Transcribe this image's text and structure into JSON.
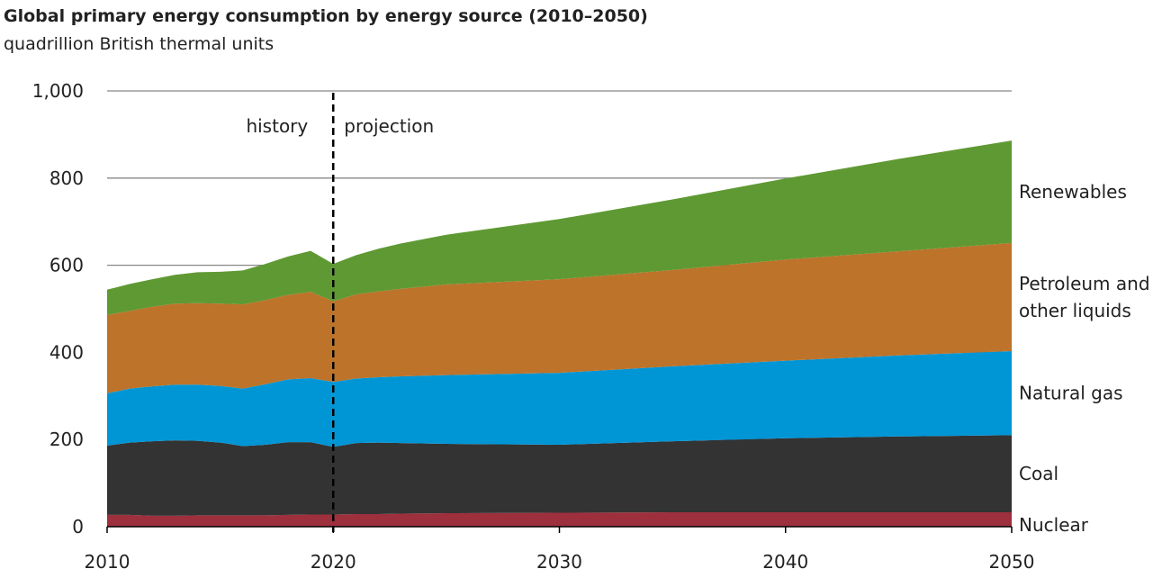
{
  "chart_data": {
    "type": "area",
    "stacked": true,
    "title": "Global primary energy consumption by energy source (2010–2050)",
    "subtitle": "quadrillion British thermal units",
    "xlabel": "",
    "ylabel": "",
    "xlim": [
      2010,
      2050
    ],
    "ylim": [
      0,
      1000
    ],
    "x_ticks": [
      "2010",
      "2020",
      "2030",
      "2040",
      "2050"
    ],
    "y_ticks": [
      "0",
      "200",
      "400",
      "600",
      "800",
      "1,000"
    ],
    "grid": "horizontal",
    "legend": "direct labels at right end",
    "annotations": {
      "divider_year": 2020,
      "history": "history",
      "projection": "projection"
    },
    "x": [
      2010,
      2011,
      2012,
      2013,
      2014,
      2015,
      2016,
      2017,
      2018,
      2019,
      2020,
      2021,
      2022,
      2023,
      2025,
      2030,
      2035,
      2040,
      2045,
      2050
    ],
    "series": [
      {
        "name": "Nuclear",
        "color": "#9e2f3d",
        "values": [
          27,
          27,
          25,
          25,
          26,
          26,
          26,
          26,
          27,
          28,
          28,
          29,
          29,
          30,
          31,
          32,
          33,
          33,
          33,
          33
        ]
      },
      {
        "name": "Coal",
        "color": "#333333",
        "values": [
          159,
          166,
          171,
          173,
          171,
          167,
          159,
          162,
          167,
          166,
          155,
          163,
          164,
          162,
          159,
          156,
          163,
          170,
          174,
          177
        ]
      },
      {
        "name": "Natural gas",
        "color": "#0096d6",
        "values": [
          120,
          124,
          126,
          128,
          129,
          130,
          132,
          139,
          144,
          147,
          149,
          148,
          150,
          153,
          158,
          165,
          172,
          178,
          186,
          193
        ]
      },
      {
        "name": "Petroleum and other liquids",
        "label_lines": [
          "Petroleum and",
          "other liquids"
        ],
        "color": "#bd732a",
        "values": [
          180,
          178,
          183,
          186,
          187,
          189,
          193,
          193,
          194,
          198,
          185,
          193,
          197,
          201,
          208,
          215,
          221,
          232,
          239,
          248
        ]
      },
      {
        "name": "Renewables",
        "color": "#5f9933",
        "values": [
          58,
          62,
          63,
          66,
          71,
          73,
          78,
          83,
          88,
          94,
          86,
          90,
          98,
          104,
          114,
          138,
          162,
          186,
          212,
          235
        ]
      }
    ]
  }
}
